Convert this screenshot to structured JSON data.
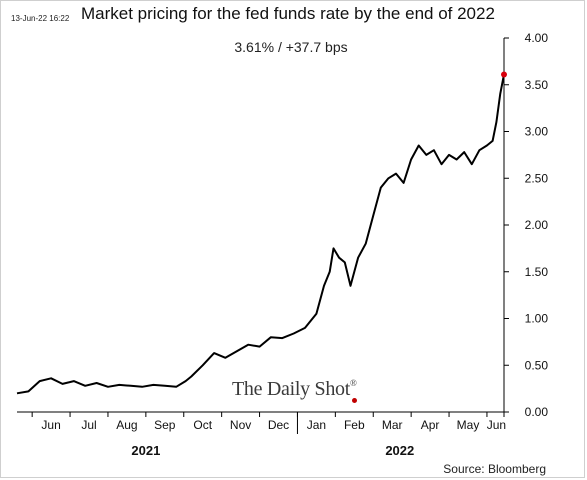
{
  "header": {
    "timestamp": "13-Jun-22 16:22",
    "title": "Market pricing for the fed funds rate by the end of 2022",
    "subtitle": "3.61%  /  +37.7 bps"
  },
  "footer": {
    "source": "Source: Bloomberg"
  },
  "watermark": {
    "text": "The Daily Shot"
  },
  "colors": {
    "line": "#000000",
    "marker": "#d9000d",
    "axis": "#000000"
  },
  "chart_data": {
    "type": "line",
    "title": "Market pricing for the fed funds rate by the end of 2022",
    "xlabel": "",
    "ylabel": "",
    "ylim": [
      0,
      4
    ],
    "y_axis_side": "right",
    "y_ticks": [
      0.0,
      0.5,
      1.0,
      1.5,
      2.0,
      2.5,
      3.0,
      3.5,
      4.0
    ],
    "y_tick_labels": [
      "0.00",
      "0.50",
      "1.00",
      "1.50",
      "2.00",
      "2.50",
      "3.00",
      "3.50",
      "4.00"
    ],
    "grid": false,
    "x_month_labels": [
      "Jun",
      "Jul",
      "Aug",
      "Sep",
      "Oct",
      "Nov",
      "Dec",
      "Jan",
      "Feb",
      "Mar",
      "Apr",
      "May",
      "Jun"
    ],
    "x_year_labels": [
      "2021",
      "2022"
    ],
    "x_unit": "months since 2021-05-19",
    "series": [
      {
        "x": [
          0,
          0.3,
          0.6,
          0.9,
          1.2,
          1.5,
          1.8,
          2.1,
          2.4,
          2.7,
          3.0,
          3.3,
          3.6,
          3.9,
          4.2,
          4.45,
          4.6,
          4.9,
          5.2,
          5.5,
          5.8,
          6.1,
          6.4,
          6.7,
          7.0,
          7.3,
          7.6,
          7.9,
          8.1,
          8.25,
          8.35,
          8.5,
          8.65,
          8.8,
          9.0,
          9.2,
          9.4,
          9.6,
          9.8,
          10.0,
          10.2,
          10.4,
          10.6,
          10.8,
          11.0,
          11.2,
          11.4,
          11.6,
          11.8,
          12.0,
          12.2,
          12.4,
          12.55,
          12.65,
          12.75,
          12.85
        ],
        "y": [
          0.2,
          0.22,
          0.33,
          0.36,
          0.3,
          0.33,
          0.28,
          0.31,
          0.27,
          0.29,
          0.28,
          0.27,
          0.29,
          0.28,
          0.27,
          0.33,
          0.38,
          0.5,
          0.63,
          0.58,
          0.65,
          0.72,
          0.7,
          0.8,
          0.79,
          0.84,
          0.9,
          1.05,
          1.35,
          1.5,
          1.75,
          1.65,
          1.6,
          1.35,
          1.65,
          1.8,
          2.1,
          2.4,
          2.5,
          2.55,
          2.45,
          2.7,
          2.85,
          2.75,
          2.8,
          2.65,
          2.75,
          2.7,
          2.78,
          2.65,
          2.8,
          2.85,
          2.9,
          3.1,
          3.4,
          3.61
        ]
      }
    ],
    "last_value": 3.61,
    "change_bps": 37.7
  }
}
